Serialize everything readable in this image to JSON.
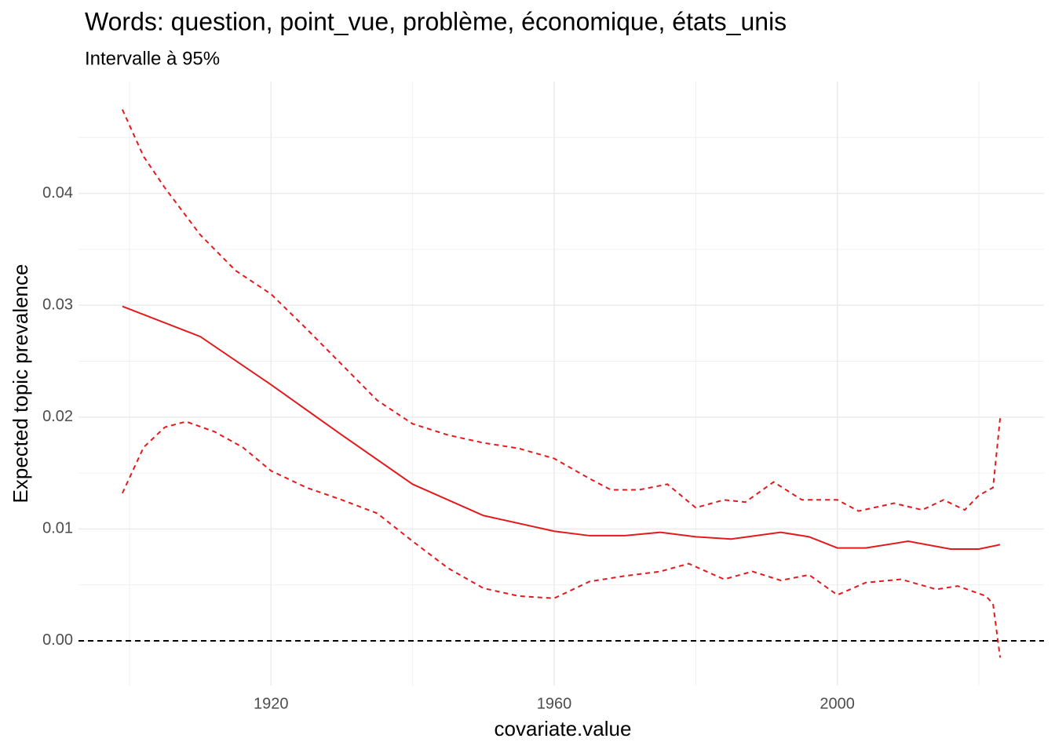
{
  "chart_data": {
    "type": "line",
    "title": "Words: question, point_vue, problème, économique, états_unis",
    "subtitle": "Intervalle à 95%",
    "x_label": "covariate.value",
    "y_label": "Expected topic prevalence",
    "xlim": [
      1892.8,
      2029.2
    ],
    "xticks": [
      1920,
      1960,
      2000
    ],
    "ylim": [
      -0.004,
      0.05
    ],
    "yticks": [
      {
        "value": 0,
        "label": "0.00"
      },
      {
        "value": 0.01,
        "label": "0.01"
      },
      {
        "value": 0.02,
        "label": "0.02"
      },
      {
        "value": 0.03,
        "label": "0.03"
      },
      {
        "value": 0.04,
        "label": "0.04"
      }
    ],
    "grid": true,
    "reference_line": 0,
    "series": [
      {
        "color": "#e31a1c",
        "dashed": false,
        "x": [
          1899,
          1910,
          1920,
          1930,
          1940,
          1950,
          1960,
          1965,
          1970,
          1975,
          1980,
          1985,
          1992,
          1996,
          2000,
          2004,
          2010,
          2016,
          2020,
          2023
        ],
        "values": [
          0.0299,
          0.0272,
          0.0229,
          0.0184,
          0.014,
          0.0112,
          0.0098,
          0.0094,
          0.0094,
          0.0097,
          0.0093,
          0.0091,
          0.0097,
          0.0093,
          0.0083,
          0.0083,
          0.0089,
          0.0082,
          0.0082,
          0.0086
        ]
      },
      {
        "color": "#e31a1c",
        "dashed": true,
        "x": [
          1899,
          1902,
          1905,
          1910,
          1915,
          1920,
          1925,
          1930,
          1935,
          1940,
          1945,
          1950,
          1955,
          1960,
          1965,
          1968,
          1972,
          1976,
          1980,
          1984,
          1987,
          1991,
          1995,
          2000,
          2003,
          2008,
          2012,
          2015,
          2018,
          2020,
          2022,
          2023
        ],
        "values": [
          0.0475,
          0.0433,
          0.0405,
          0.0363,
          0.0331,
          0.031,
          0.0279,
          0.0247,
          0.0215,
          0.0194,
          0.0184,
          0.0177,
          0.0172,
          0.0163,
          0.0145,
          0.0135,
          0.0135,
          0.014,
          0.0119,
          0.0126,
          0.0124,
          0.0142,
          0.0126,
          0.0126,
          0.0116,
          0.0123,
          0.0117,
          0.0126,
          0.0117,
          0.013,
          0.0137,
          0.0199
        ]
      },
      {
        "color": "#e31a1c",
        "dashed": true,
        "x": [
          1899,
          1902,
          1905,
          1908,
          1912,
          1916,
          1920,
          1925,
          1930,
          1935,
          1940,
          1945,
          1950,
          1955,
          1960,
          1965,
          1970,
          1975,
          1979,
          1984,
          1988,
          1992,
          1996,
          2000,
          2004,
          2009,
          2014,
          2017,
          2021,
          2022,
          2023
        ],
        "values": [
          0.0132,
          0.0173,
          0.0191,
          0.0196,
          0.0187,
          0.0173,
          0.0152,
          0.0137,
          0.0126,
          0.0114,
          0.0089,
          0.0065,
          0.0047,
          0.004,
          0.0038,
          0.0053,
          0.0058,
          0.0062,
          0.0069,
          0.0055,
          0.0062,
          0.0054,
          0.0059,
          0.0041,
          0.0052,
          0.0055,
          0.0046,
          0.0049,
          0.004,
          0.0033,
          -0.0015
        ]
      }
    ]
  }
}
